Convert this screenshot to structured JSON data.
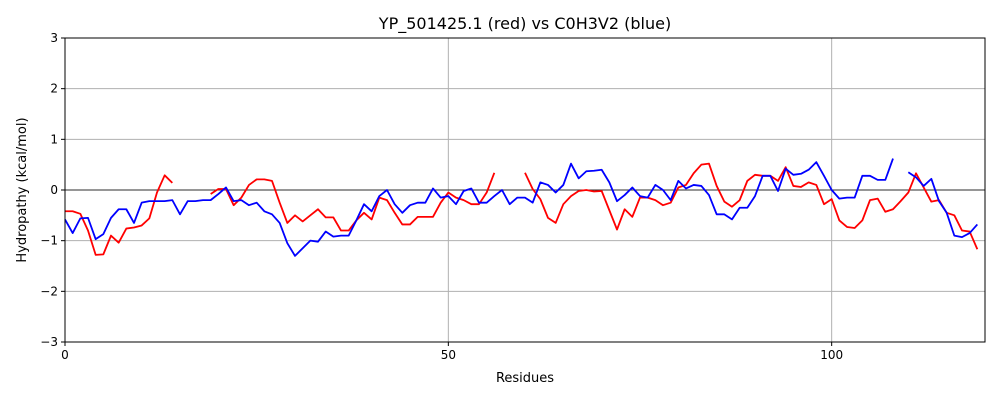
{
  "chart_data": {
    "type": "line",
    "title": "YP_501425.1 (red) vs C0H3V2 (blue)",
    "xlabel": "Residues",
    "ylabel": "Hydropathy (kcal/mol)",
    "xlim": [
      0,
      120
    ],
    "ylim": [
      -3,
      3
    ],
    "xticks": [
      0,
      50,
      100
    ],
    "yticks": [
      -3,
      -2,
      -1,
      0,
      1,
      2,
      3
    ],
    "grid": true,
    "series": [
      {
        "color": "#ff0000",
        "points": [
          [
            0,
            -0.42
          ],
          [
            1,
            -0.42
          ],
          [
            2,
            -0.47
          ],
          [
            3,
            -0.8
          ],
          [
            4,
            -1.28
          ],
          [
            5,
            -1.27
          ],
          [
            6,
            -0.9
          ],
          [
            7,
            -1.04
          ],
          [
            8,
            -0.76
          ],
          [
            9,
            -0.74
          ],
          [
            10,
            -0.7
          ],
          [
            11,
            -0.56
          ],
          [
            12,
            -0.05
          ],
          [
            13,
            0.29
          ],
          [
            14,
            0.14
          ],
          null,
          [
            19,
            -0.08
          ],
          [
            20,
            0.02
          ],
          [
            21,
            0.02
          ],
          [
            22,
            -0.3
          ],
          [
            23,
            -0.15
          ],
          [
            24,
            0.1
          ],
          [
            25,
            0.21
          ],
          [
            26,
            0.21
          ],
          [
            27,
            0.18
          ],
          [
            28,
            -0.25
          ],
          [
            29,
            -0.65
          ],
          [
            30,
            -0.5
          ],
          [
            31,
            -0.62
          ],
          [
            32,
            -0.5
          ],
          [
            33,
            -0.38
          ],
          [
            34,
            -0.54
          ],
          [
            35,
            -0.54
          ],
          [
            36,
            -0.8
          ],
          [
            37,
            -0.8
          ],
          [
            38,
            -0.6
          ],
          [
            39,
            -0.45
          ],
          [
            40,
            -0.58
          ],
          [
            41,
            -0.15
          ],
          [
            42,
            -0.2
          ],
          [
            43,
            -0.45
          ],
          [
            44,
            -0.68
          ],
          [
            45,
            -0.68
          ],
          [
            46,
            -0.53
          ],
          [
            47,
            -0.53
          ],
          [
            48,
            -0.53
          ],
          [
            49,
            -0.25
          ],
          [
            50,
            -0.05
          ],
          [
            51,
            -0.15
          ],
          [
            52,
            -0.2
          ],
          [
            53,
            -0.28
          ],
          [
            54,
            -0.28
          ],
          [
            55,
            -0.05
          ],
          [
            56,
            0.34
          ],
          null,
          [
            60,
            0.34
          ],
          [
            61,
            0.02
          ],
          [
            62,
            -0.18
          ],
          [
            63,
            -0.55
          ],
          [
            64,
            -0.65
          ],
          [
            65,
            -0.28
          ],
          [
            66,
            -0.12
          ],
          [
            67,
            -0.02
          ],
          [
            68,
            0.0
          ],
          [
            69,
            -0.03
          ],
          [
            70,
            -0.02
          ],
          [
            71,
            -0.4
          ],
          [
            72,
            -0.78
          ],
          [
            73,
            -0.38
          ],
          [
            74,
            -0.53
          ],
          [
            75,
            -0.15
          ],
          [
            76,
            -0.15
          ],
          [
            77,
            -0.2
          ],
          [
            78,
            -0.3
          ],
          [
            79,
            -0.25
          ],
          [
            80,
            0.05
          ],
          [
            81,
            0.1
          ],
          [
            82,
            0.33
          ],
          [
            83,
            0.5
          ],
          [
            84,
            0.52
          ],
          [
            85,
            0.08
          ],
          [
            86,
            -0.23
          ],
          [
            87,
            -0.33
          ],
          [
            88,
            -0.2
          ],
          [
            89,
            0.18
          ],
          [
            90,
            0.3
          ],
          [
            91,
            0.28
          ],
          [
            92,
            0.28
          ],
          [
            93,
            0.18
          ],
          [
            94,
            0.45
          ],
          [
            95,
            0.08
          ],
          [
            96,
            0.06
          ],
          [
            97,
            0.15
          ],
          [
            98,
            0.1
          ],
          [
            99,
            -0.28
          ],
          [
            100,
            -0.18
          ],
          [
            101,
            -0.6
          ],
          [
            102,
            -0.73
          ],
          [
            103,
            -0.75
          ],
          [
            104,
            -0.6
          ],
          [
            105,
            -0.2
          ],
          [
            106,
            -0.17
          ],
          [
            107,
            -0.43
          ],
          [
            108,
            -0.38
          ],
          [
            109,
            -0.22
          ],
          [
            110,
            -0.05
          ],
          [
            111,
            0.33
          ],
          [
            112,
            0.05
          ],
          [
            113,
            -0.23
          ],
          [
            114,
            -0.2
          ],
          [
            115,
            -0.45
          ],
          [
            116,
            -0.5
          ],
          [
            117,
            -0.8
          ],
          [
            118,
            -0.82
          ],
          [
            119,
            -1.17
          ]
        ]
      },
      {
        "color": "#0000ff",
        "points": [
          [
            0,
            -0.58
          ],
          [
            1,
            -0.85
          ],
          [
            2,
            -0.56
          ],
          [
            3,
            -0.55
          ],
          [
            4,
            -0.97
          ],
          [
            5,
            -0.87
          ],
          [
            6,
            -0.55
          ],
          [
            7,
            -0.38
          ],
          [
            8,
            -0.38
          ],
          [
            9,
            -0.65
          ],
          [
            10,
            -0.25
          ],
          [
            11,
            -0.22
          ],
          [
            12,
            -0.22
          ],
          [
            13,
            -0.22
          ],
          [
            14,
            -0.2
          ],
          [
            15,
            -0.48
          ],
          [
            16,
            -0.22
          ],
          [
            17,
            -0.22
          ],
          [
            18,
            -0.2
          ],
          [
            19,
            -0.2
          ],
          [
            20,
            -0.08
          ],
          [
            21,
            0.05
          ],
          [
            22,
            -0.22
          ],
          [
            23,
            -0.2
          ],
          [
            24,
            -0.3
          ],
          [
            25,
            -0.25
          ],
          [
            26,
            -0.42
          ],
          [
            27,
            -0.48
          ],
          [
            28,
            -0.65
          ],
          [
            29,
            -1.05
          ],
          [
            30,
            -1.3
          ],
          [
            31,
            -1.15
          ],
          [
            32,
            -1.0
          ],
          [
            33,
            -1.02
          ],
          [
            34,
            -0.82
          ],
          [
            35,
            -0.92
          ],
          [
            36,
            -0.9
          ],
          [
            37,
            -0.9
          ],
          [
            38,
            -0.6
          ],
          [
            39,
            -0.28
          ],
          [
            40,
            -0.42
          ],
          [
            41,
            -0.12
          ],
          [
            42,
            0.0
          ],
          [
            43,
            -0.28
          ],
          [
            44,
            -0.45
          ],
          [
            45,
            -0.3
          ],
          [
            46,
            -0.25
          ],
          [
            47,
            -0.25
          ],
          [
            48,
            0.03
          ],
          [
            49,
            -0.15
          ],
          [
            50,
            -0.12
          ],
          [
            51,
            -0.28
          ],
          [
            52,
            -0.02
          ],
          [
            53,
            0.03
          ],
          [
            54,
            -0.25
          ],
          [
            55,
            -0.25
          ],
          [
            56,
            -0.12
          ],
          [
            57,
            0.0
          ],
          [
            58,
            -0.28
          ],
          [
            59,
            -0.15
          ],
          [
            60,
            -0.15
          ],
          [
            61,
            -0.25
          ],
          [
            62,
            0.15
          ],
          [
            63,
            0.1
          ],
          [
            64,
            -0.05
          ],
          [
            65,
            0.1
          ],
          [
            66,
            0.52
          ],
          [
            67,
            0.23
          ],
          [
            68,
            0.37
          ],
          [
            69,
            0.38
          ],
          [
            70,
            0.4
          ],
          [
            71,
            0.15
          ],
          [
            72,
            -0.22
          ],
          [
            73,
            -0.1
          ],
          [
            74,
            0.05
          ],
          [
            75,
            -0.12
          ],
          [
            76,
            -0.15
          ],
          [
            77,
            0.1
          ],
          [
            78,
            0.0
          ],
          [
            79,
            -0.2
          ],
          [
            80,
            0.18
          ],
          [
            81,
            0.03
          ],
          [
            82,
            0.1
          ],
          [
            83,
            0.08
          ],
          [
            84,
            -0.1
          ],
          [
            85,
            -0.48
          ],
          [
            86,
            -0.48
          ],
          [
            87,
            -0.58
          ],
          [
            88,
            -0.35
          ],
          [
            89,
            -0.35
          ],
          [
            90,
            -0.12
          ],
          [
            91,
            0.28
          ],
          [
            92,
            0.28
          ],
          [
            93,
            -0.02
          ],
          [
            94,
            0.42
          ],
          [
            95,
            0.3
          ],
          [
            96,
            0.32
          ],
          [
            97,
            0.4
          ],
          [
            98,
            0.55
          ],
          [
            99,
            0.28
          ],
          [
            100,
            0.0
          ],
          [
            101,
            -0.17
          ],
          [
            102,
            -0.15
          ],
          [
            103,
            -0.15
          ],
          [
            104,
            0.28
          ],
          [
            105,
            0.28
          ],
          [
            106,
            0.2
          ],
          [
            107,
            0.2
          ],
          [
            108,
            0.62
          ],
          null,
          [
            110,
            0.35
          ],
          [
            111,
            0.25
          ],
          [
            112,
            0.08
          ],
          [
            113,
            0.22
          ],
          [
            114,
            -0.22
          ],
          [
            115,
            -0.45
          ],
          [
            116,
            -0.9
          ],
          [
            117,
            -0.93
          ],
          [
            118,
            -0.85
          ],
          [
            119,
            -0.68
          ]
        ]
      }
    ]
  }
}
